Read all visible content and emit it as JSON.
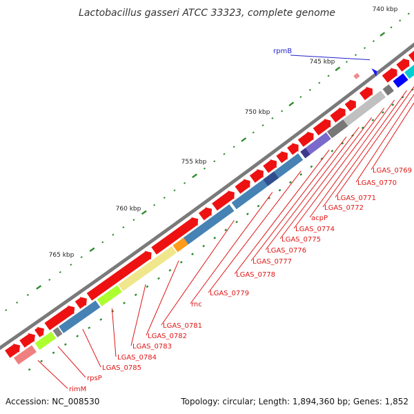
{
  "title": "Lactobacillus gasseri ATCC 33323, complete genome",
  "footer": {
    "accession": "Accession: NC_008530",
    "summary": "Topology: circular; Length: 1,894,360 bp; Genes: 1,852"
  },
  "colors": {
    "backbone": "#7a7a7a",
    "tick_mark": "#2e8b2e",
    "forward_gene": "#ee1111",
    "gene_label": "#e01515",
    "highlight_label": "#1f1fcc"
  },
  "tick_labels": [
    "740 kbp",
    "745 kbp",
    "750 kbp",
    "755 kbp",
    "760 kbp",
    "765 kbp"
  ],
  "gene_labels": [
    {
      "text": "rpmB",
      "highlight": true
    },
    {
      "text": "LGAS_0769"
    },
    {
      "text": "LGAS_0770"
    },
    {
      "text": "LGAS_0771"
    },
    {
      "text": "LGAS_0772"
    },
    {
      "text": "acpP"
    },
    {
      "text": "LGAS_0774"
    },
    {
      "text": "LGAS_0775"
    },
    {
      "text": "LGAS_0776"
    },
    {
      "text": "LGAS_0777"
    },
    {
      "text": "LGAS_0778"
    },
    {
      "text": "LGAS_0779"
    },
    {
      "text": "rnc"
    },
    {
      "text": "LGAS_0781"
    },
    {
      "text": "LGAS_0782"
    },
    {
      "text": "LGAS_0783"
    },
    {
      "text": "LGAS_0784"
    },
    {
      "text": "LGAS_0785"
    },
    {
      "text": "rpsP"
    },
    {
      "text": "rimM"
    }
  ],
  "feature_colors": [
    "#f08a8a",
    "#ff8888",
    "#777777",
    "#b0b0b0",
    "#7a6acb",
    "#3a3a8f",
    "#4682b4",
    "#2f4f8f",
    "#4682b4",
    "#4682b4",
    "#ff9a1a",
    "#f0e68c",
    "#adff2f",
    "#4682b4",
    "#808080",
    "#adff2f",
    "#f08080",
    "#0000ff",
    "#00ced1",
    "#ff1493",
    "#9acd32",
    "#c0c0c0",
    "#b3b3b3",
    "#ff69b4"
  ]
}
